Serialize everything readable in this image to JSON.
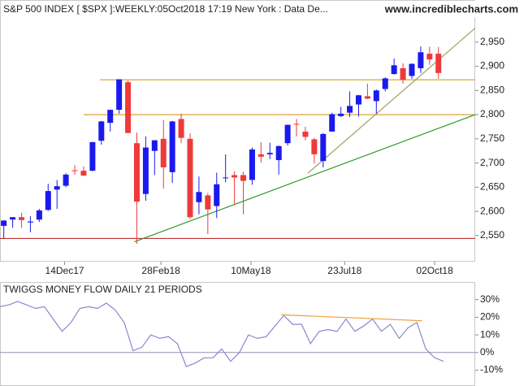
{
  "chart_data": [
    {
      "type": "candlestick",
      "title": "S&P 500 INDEX [ $SPX ]:WEEKLY:05Oct2018 17:19 New York : Data De...",
      "subtitle": "www.incrediblecharts.com",
      "x": [
        "2017-10-27",
        "2017-11-03",
        "2017-11-10",
        "2017-11-17",
        "2017-11-24",
        "2017-12-01",
        "2017-12-08",
        "2017-12-15",
        "2017-12-22",
        "2017-12-29",
        "2018-01-05",
        "2018-01-12",
        "2018-01-19",
        "2018-01-26",
        "2018-02-02",
        "2018-02-09",
        "2018-02-16",
        "2018-02-23",
        "2018-03-02",
        "2018-03-09",
        "2018-03-16",
        "2018-03-23",
        "2018-03-30",
        "2018-04-06",
        "2018-04-13",
        "2018-04-20",
        "2018-04-27",
        "2018-05-04",
        "2018-05-11",
        "2018-05-18",
        "2018-05-25",
        "2018-06-01",
        "2018-06-08",
        "2018-06-15",
        "2018-06-22",
        "2018-06-29",
        "2018-07-06",
        "2018-07-13",
        "2018-07-20",
        "2018-07-27",
        "2018-08-03",
        "2018-08-10",
        "2018-08-17",
        "2018-08-24",
        "2018-08-31",
        "2018-09-07",
        "2018-09-14",
        "2018-09-21",
        "2018-09-28",
        "2018-10-05"
      ],
      "open": [
        2570,
        2583,
        2588,
        2577,
        2583,
        2603,
        2645,
        2653,
        2685,
        2684,
        2684,
        2746,
        2783,
        2810,
        2867,
        2741,
        2636,
        2725,
        2750,
        2681,
        2791,
        2750,
        2619,
        2633,
        2611,
        2670,
        2675,
        2675,
        2665,
        2718,
        2718,
        2706,
        2741,
        2781,
        2765,
        2749,
        2704,
        2765,
        2797,
        2804,
        2821,
        2838,
        2828,
        2853,
        2884,
        2896,
        2880,
        2896,
        2926,
        2926
      ],
      "high": [
        2582,
        2588,
        2597,
        2590,
        2605,
        2657,
        2665,
        2679,
        2695,
        2693,
        2744,
        2787,
        2810,
        2873,
        2870,
        2763,
        2755,
        2747,
        2789,
        2787,
        2802,
        2761,
        2672,
        2638,
        2680,
        2718,
        2683,
        2682,
        2732,
        2743,
        2742,
        2736,
        2779,
        2791,
        2775,
        2752,
        2762,
        2804,
        2816,
        2848,
        2841,
        2864,
        2852,
        2877,
        2916,
        2906,
        2906,
        2941,
        2940,
        2940
      ],
      "low": [
        2544,
        2566,
        2566,
        2557,
        2578,
        2601,
        2605,
        2650,
        2676,
        2673,
        2683,
        2738,
        2765,
        2802,
        2762,
        2533,
        2622,
        2675,
        2647,
        2659,
        2741,
        2585,
        2594,
        2553,
        2586,
        2660,
        2613,
        2594,
        2655,
        2701,
        2708,
        2676,
        2736,
        2755,
        2747,
        2699,
        2691,
        2765,
        2795,
        2795,
        2796,
        2832,
        2802,
        2848,
        2883,
        2864,
        2874,
        2886,
        2903,
        2874
      ],
      "close": [
        2581,
        2588,
        2582,
        2579,
        2602,
        2642,
        2652,
        2676,
        2684,
        2674,
        2743,
        2786,
        2810,
        2873,
        2762,
        2620,
        2732,
        2747,
        2691,
        2786,
        2752,
        2588,
        2640,
        2604,
        2656,
        2670,
        2670,
        2663,
        2728,
        2713,
        2721,
        2735,
        2779,
        2780,
        2754,
        2718,
        2760,
        2801,
        2802,
        2818,
        2840,
        2833,
        2850,
        2875,
        2902,
        2872,
        2905,
        2929,
        2914,
        2886
      ],
      "up_color": "#1a1aee",
      "down_color": "#ee3a3a",
      "xlim": [
        "2017-10-24",
        "2018-11-03"
      ],
      "xticks": [
        {
          "value": "2017-12-14",
          "label": "14Dec17"
        },
        {
          "value": "2018-02-28",
          "label": "28Feb18"
        },
        {
          "value": "2018-05-10",
          "label": "10May18"
        },
        {
          "value": "2018-07-23",
          "label": "23Jul18"
        },
        {
          "value": "2018-10-02",
          "label": "02Oct18"
        }
      ],
      "ylim": [
        2496,
        3037
      ],
      "yticks": [
        {
          "value": 2550,
          "label": "2,550"
        },
        {
          "value": 2600,
          "label": "2,600"
        },
        {
          "value": 2650,
          "label": "2,650"
        },
        {
          "value": 2700,
          "label": "2,700"
        },
        {
          "value": 2750,
          "label": "2,750"
        },
        {
          "value": 2800,
          "label": "2,800"
        },
        {
          "value": 2850,
          "label": "2,850"
        },
        {
          "value": 2900,
          "label": "2,900"
        },
        {
          "value": 2950,
          "label": "2,950"
        }
      ],
      "lines": [
        {
          "x": [
            "2017-10-24",
            "2018-11-03"
          ],
          "y": [
            2544,
            2544
          ],
          "color": "#c03030"
        },
        {
          "x": [
            "2018-01-11",
            "2018-11-03"
          ],
          "y": [
            2872,
            2872
          ],
          "color": "#d9982a"
        },
        {
          "x": [
            "2017-12-29",
            "2018-11-03"
          ],
          "y": [
            2800,
            2800
          ],
          "color": "#d9982a"
        },
        {
          "x": [
            "2018-02-07",
            "2018-11-03"
          ],
          "y": [
            2537,
            2800
          ],
          "color": "#2a9a2a"
        },
        {
          "x": [
            "2018-06-24",
            "2018-11-03"
          ],
          "y": [
            2679,
            2979
          ],
          "color": "#a0a060"
        }
      ]
    },
    {
      "type": "line",
      "title": "TWIGGS MONEY FLOW DAILY 21 PERIODS",
      "x": [
        "2017-10-24",
        "2017-10-31",
        "2017-11-07",
        "2017-11-14",
        "2017-11-21",
        "2017-11-28",
        "2017-12-05",
        "2017-12-12",
        "2017-12-19",
        "2017-12-26",
        "2018-01-02",
        "2018-01-09",
        "2018-01-16",
        "2018-01-23",
        "2018-01-30",
        "2018-02-06",
        "2018-02-13",
        "2018-02-20",
        "2018-02-27",
        "2018-03-06",
        "2018-03-13",
        "2018-03-20",
        "2018-03-27",
        "2018-04-03",
        "2018-04-10",
        "2018-04-17",
        "2018-04-24",
        "2018-05-01",
        "2018-05-08",
        "2018-05-15",
        "2018-05-22",
        "2018-05-29",
        "2018-06-05",
        "2018-06-12",
        "2018-06-19",
        "2018-06-26",
        "2018-07-03",
        "2018-07-10",
        "2018-07-17",
        "2018-07-24",
        "2018-07-31",
        "2018-08-07",
        "2018-08-14",
        "2018-08-21",
        "2018-08-28",
        "2018-09-04",
        "2018-09-11",
        "2018-09-18",
        "2018-09-25",
        "2018-10-02",
        "2018-10-09"
      ],
      "series": [
        {
          "color": "#8888d0",
          "values": [
            26,
            27,
            29,
            27,
            25,
            26,
            19,
            12,
            17,
            25,
            26,
            25,
            28,
            24,
            17,
            1,
            3,
            10,
            8,
            9,
            5,
            -8,
            -6,
            -3,
            -3,
            2,
            -5,
            0,
            10,
            8,
            9,
            15,
            21,
            16,
            16,
            5,
            12,
            13,
            12,
            19,
            12,
            15,
            19,
            12,
            16,
            8,
            14,
            17,
            2,
            -3,
            -5
          ]
        }
      ],
      "lines": [
        {
          "x": [
            "2018-06-03",
            "2018-09-22"
          ],
          "y": [
            21.4,
            18
          ],
          "color": "#f0a040"
        }
      ],
      "hlines": [
        {
          "y": 0,
          "color": "#9090b8"
        }
      ],
      "xlim": [
        "2017-10-24",
        "2018-11-03"
      ],
      "ylim": [
        -19,
        40
      ],
      "yticks": [
        {
          "value": -10,
          "label": "-10%"
        },
        {
          "value": 0,
          "label": "0%"
        },
        {
          "value": 10,
          "label": "10%"
        },
        {
          "value": 20,
          "label": "20%"
        },
        {
          "value": 30,
          "label": "30%"
        }
      ]
    }
  ]
}
